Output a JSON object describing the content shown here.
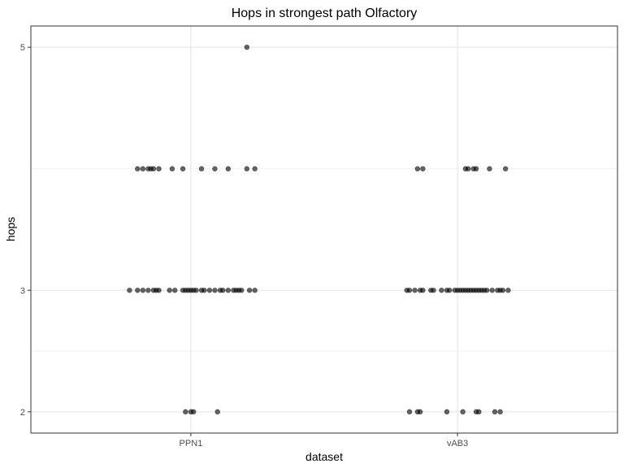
{
  "chart_data": {
    "type": "scatter",
    "subtype": "jitter",
    "title": "Hops in strongest path Olfactory",
    "xlabel": "dataset",
    "ylabel": "hops",
    "categories": [
      "PPN1",
      "vAB3"
    ],
    "ylim": [
      1.825,
      5.175
    ],
    "yticks": [
      2,
      3,
      5
    ],
    "grid": true,
    "legend": "none",
    "point_color": "#000000",
    "point_alpha": 0.6,
    "series": [
      {
        "category": "PPN1",
        "points": [
          {
            "x": 1.21,
            "y": 5
          },
          {
            "x": 0.8,
            "y": 4
          },
          {
            "x": 0.82,
            "y": 4
          },
          {
            "x": 0.84,
            "y": 4
          },
          {
            "x": 0.85,
            "y": 4
          },
          {
            "x": 0.86,
            "y": 4
          },
          {
            "x": 0.88,
            "y": 4
          },
          {
            "x": 0.93,
            "y": 4
          },
          {
            "x": 0.97,
            "y": 4
          },
          {
            "x": 1.04,
            "y": 4
          },
          {
            "x": 1.09,
            "y": 4
          },
          {
            "x": 1.14,
            "y": 4
          },
          {
            "x": 1.21,
            "y": 4
          },
          {
            "x": 1.24,
            "y": 4
          },
          {
            "x": 0.77,
            "y": 3
          },
          {
            "x": 0.8,
            "y": 3
          },
          {
            "x": 0.82,
            "y": 3
          },
          {
            "x": 0.84,
            "y": 3
          },
          {
            "x": 0.86,
            "y": 3
          },
          {
            "x": 0.87,
            "y": 3
          },
          {
            "x": 0.88,
            "y": 3
          },
          {
            "x": 0.92,
            "y": 3
          },
          {
            "x": 0.94,
            "y": 3
          },
          {
            "x": 0.97,
            "y": 3
          },
          {
            "x": 0.98,
            "y": 3
          },
          {
            "x": 0.99,
            "y": 3
          },
          {
            "x": 1.0,
            "y": 3
          },
          {
            "x": 1.01,
            "y": 3
          },
          {
            "x": 1.02,
            "y": 3
          },
          {
            "x": 1.04,
            "y": 3
          },
          {
            "x": 1.05,
            "y": 3
          },
          {
            "x": 1.07,
            "y": 3
          },
          {
            "x": 1.09,
            "y": 3
          },
          {
            "x": 1.11,
            "y": 3
          },
          {
            "x": 1.12,
            "y": 3
          },
          {
            "x": 1.14,
            "y": 3
          },
          {
            "x": 1.16,
            "y": 3
          },
          {
            "x": 1.17,
            "y": 3
          },
          {
            "x": 1.18,
            "y": 3
          },
          {
            "x": 1.19,
            "y": 3
          },
          {
            "x": 1.22,
            "y": 3
          },
          {
            "x": 1.24,
            "y": 3
          },
          {
            "x": 0.98,
            "y": 2
          },
          {
            "x": 1.0,
            "y": 2
          },
          {
            "x": 1.01,
            "y": 2
          },
          {
            "x": 1.1,
            "y": 2
          }
        ]
      },
      {
        "category": "vAB3",
        "points": [
          {
            "x": 1.85,
            "y": 4
          },
          {
            "x": 1.87,
            "y": 4
          },
          {
            "x": 2.03,
            "y": 4
          },
          {
            "x": 2.04,
            "y": 4
          },
          {
            "x": 2.06,
            "y": 4
          },
          {
            "x": 2.07,
            "y": 4
          },
          {
            "x": 2.12,
            "y": 4
          },
          {
            "x": 2.18,
            "y": 4
          },
          {
            "x": 1.81,
            "y": 3
          },
          {
            "x": 1.82,
            "y": 3
          },
          {
            "x": 1.84,
            "y": 3
          },
          {
            "x": 1.86,
            "y": 3
          },
          {
            "x": 1.87,
            "y": 3
          },
          {
            "x": 1.9,
            "y": 3
          },
          {
            "x": 1.91,
            "y": 3
          },
          {
            "x": 1.94,
            "y": 3
          },
          {
            "x": 1.96,
            "y": 3
          },
          {
            "x": 1.97,
            "y": 3
          },
          {
            "x": 1.99,
            "y": 3
          },
          {
            "x": 2.0,
            "y": 3
          },
          {
            "x": 2.01,
            "y": 3
          },
          {
            "x": 2.02,
            "y": 3
          },
          {
            "x": 2.03,
            "y": 3
          },
          {
            "x": 2.04,
            "y": 3
          },
          {
            "x": 2.05,
            "y": 3
          },
          {
            "x": 2.06,
            "y": 3
          },
          {
            "x": 2.07,
            "y": 3
          },
          {
            "x": 2.08,
            "y": 3
          },
          {
            "x": 2.09,
            "y": 3
          },
          {
            "x": 2.1,
            "y": 3
          },
          {
            "x": 2.11,
            "y": 3
          },
          {
            "x": 2.13,
            "y": 3
          },
          {
            "x": 2.15,
            "y": 3
          },
          {
            "x": 2.16,
            "y": 3
          },
          {
            "x": 2.17,
            "y": 3
          },
          {
            "x": 2.19,
            "y": 3
          },
          {
            "x": 1.82,
            "y": 2
          },
          {
            "x": 1.85,
            "y": 2
          },
          {
            "x": 1.86,
            "y": 2
          },
          {
            "x": 1.96,
            "y": 2
          },
          {
            "x": 2.02,
            "y": 2
          },
          {
            "x": 2.07,
            "y": 2
          },
          {
            "x": 2.08,
            "y": 2
          },
          {
            "x": 2.14,
            "y": 2
          },
          {
            "x": 2.16,
            "y": 2
          }
        ]
      }
    ]
  }
}
